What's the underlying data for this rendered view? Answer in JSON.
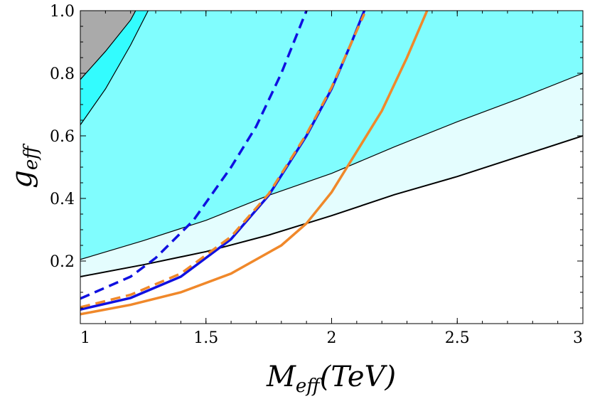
{
  "chart_data": {
    "type": "line",
    "title": "",
    "xlabel": {
      "main": "M",
      "sub": "eff",
      "unit": "(TeV)"
    },
    "ylabel": {
      "main": "g",
      "sub": "eff"
    },
    "xlim": [
      1,
      3
    ],
    "ylim": [
      0,
      1.0
    ],
    "x_ticks": [
      "1",
      "1.5",
      "2",
      "2.5",
      "3"
    ],
    "y_ticks": [
      "0.2",
      "0.4",
      "0.6",
      "0.8",
      "1.0"
    ],
    "grid": false,
    "regions": [
      {
        "fill": "#e4fdfe",
        "border_color": "#000000",
        "points": [
          [
            1.0,
            0.15
          ],
          [
            1.25,
            0.188
          ],
          [
            1.5,
            0.23
          ],
          [
            1.75,
            0.283
          ],
          [
            2.0,
            0.345
          ],
          [
            2.25,
            0.412
          ],
          [
            2.5,
            0.47
          ],
          [
            2.75,
            0.535
          ],
          [
            3.0,
            0.6
          ]
        ]
      },
      {
        "fill": "#80fdfe",
        "border_color": "#000000",
        "points": [
          [
            1.0,
            0.205
          ],
          [
            1.25,
            0.265
          ],
          [
            1.5,
            0.33
          ],
          [
            1.75,
            0.41
          ],
          [
            2.0,
            0.48
          ],
          [
            2.25,
            0.565
          ],
          [
            2.5,
            0.645
          ],
          [
            2.75,
            0.72
          ],
          [
            3.0,
            0.8
          ]
        ]
      },
      {
        "fill": "#33fcfe",
        "border_color": "#000000",
        "points": [
          [
            1.0,
            0.635
          ],
          [
            1.1,
            0.75
          ],
          [
            1.2,
            0.89
          ],
          [
            1.27,
            1.0
          ]
        ]
      },
      {
        "fill": "#aaaaaa",
        "border_color": "#000000",
        "points": [
          [
            1.0,
            0.78
          ],
          [
            1.1,
            0.87
          ],
          [
            1.2,
            0.97
          ],
          [
            1.22,
            1.0
          ]
        ]
      }
    ],
    "series": [
      {
        "color": "#1010e0",
        "dash": "solid",
        "points": [
          [
            1.0,
            0.045
          ],
          [
            1.2,
            0.082
          ],
          [
            1.4,
            0.15
          ],
          [
            1.6,
            0.27
          ],
          [
            1.75,
            0.41
          ],
          [
            1.9,
            0.6
          ],
          [
            2.0,
            0.75
          ],
          [
            2.08,
            0.9
          ],
          [
            2.13,
            1.0
          ]
        ]
      },
      {
        "color": "#1010e0",
        "dash": "dashed",
        "points": [
          [
            1.0,
            0.08
          ],
          [
            1.2,
            0.15
          ],
          [
            1.3,
            0.21
          ],
          [
            1.45,
            0.33
          ],
          [
            1.6,
            0.5
          ],
          [
            1.7,
            0.63
          ],
          [
            1.8,
            0.8
          ],
          [
            1.9,
            1.0
          ]
        ]
      },
      {
        "color": "#f0882a",
        "dash": "dashed",
        "points": [
          [
            1.0,
            0.052
          ],
          [
            1.2,
            0.092
          ],
          [
            1.4,
            0.16
          ],
          [
            1.6,
            0.278
          ],
          [
            1.75,
            0.415
          ],
          [
            1.9,
            0.605
          ],
          [
            2.0,
            0.755
          ],
          [
            2.08,
            0.9
          ],
          [
            2.13,
            0.99
          ]
        ]
      },
      {
        "color": "#f0882a",
        "dash": "solid",
        "points": [
          [
            1.0,
            0.03
          ],
          [
            1.2,
            0.06
          ],
          [
            1.4,
            0.1
          ],
          [
            1.6,
            0.16
          ],
          [
            1.8,
            0.25
          ],
          [
            1.9,
            0.32
          ],
          [
            2.0,
            0.42
          ],
          [
            2.1,
            0.55
          ],
          [
            2.2,
            0.68
          ],
          [
            2.3,
            0.85
          ],
          [
            2.38,
            1.0
          ]
        ]
      }
    ]
  }
}
